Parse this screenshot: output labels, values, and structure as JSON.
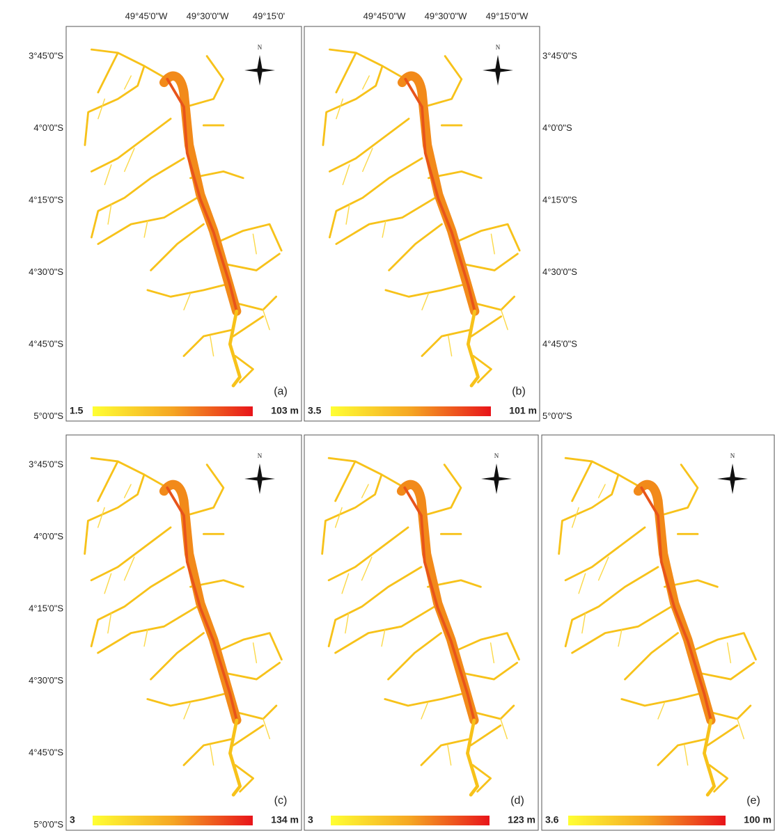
{
  "north_label": "N",
  "lat_ticks": [
    "3°45'0\"S",
    "4°0'0\"S",
    "4°15'0\"S",
    "4°30'0\"S",
    "4°45'0\"S",
    "5°0'0\"S"
  ],
  "panels": [
    {
      "label": "(a)",
      "legend_min": "1.5",
      "legend_max": "103 m",
      "top_ticks": [
        "49°45'0\"W",
        "49°30'0\"W",
        "49°15'0'"
      ]
    },
    {
      "label": "(b)",
      "legend_min": "3.5",
      "legend_max": "101 m",
      "top_ticks": [
        "49°45'0\"W",
        "49°30'0\"W",
        "49°15'0\"W"
      ]
    },
    {
      "label": "(c)",
      "legend_min": "3",
      "legend_max": "134 m"
    },
    {
      "label": "(d)",
      "legend_min": "3",
      "legend_max": "123 m"
    },
    {
      "label": "(e)",
      "legend_min": "3.6",
      "legend_max": "100 m"
    }
  ]
}
